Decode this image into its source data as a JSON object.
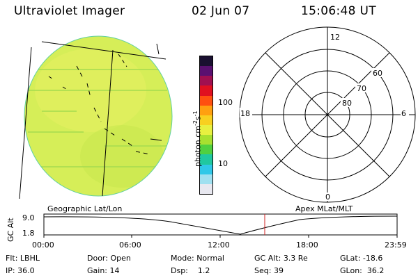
{
  "header": {
    "title": "Ultraviolet Imager",
    "date": "02 Jun 07",
    "time": "15:06:48 UT"
  },
  "colorbar": {
    "unit_label": "photon cm",
    "unit_exp1": "-2",
    "unit_mid": "s",
    "unit_exp2": "-1",
    "tick_100": "100",
    "tick_10": "10",
    "colors": [
      "#1a1030",
      "#5a1070",
      "#a01050",
      "#e01020",
      "#ff5010",
      "#ffa010",
      "#f8d020",
      "#e8f040",
      "#a8e030",
      "#50d040",
      "#20c8a0",
      "#30c8e8",
      "#a0e0f0",
      "#e8e8f0"
    ]
  },
  "polar": {
    "label_top": "12",
    "label_left": "18",
    "label_right": "6",
    "label_bottom": "0",
    "ring_labels": [
      "60",
      "70",
      "80"
    ]
  },
  "timeline": {
    "left_label": "Geographic Lat/Lon",
    "right_label": "Apex MLat/MLT",
    "y_axis_label": "GC Alt",
    "y_top": "9.0",
    "y_bottom": "1.8",
    "x_ticks": [
      "00:00",
      "06:00",
      "12:00",
      "18:00",
      "23:59"
    ],
    "marker_color": "#d02020"
  },
  "info": {
    "filter_label": "Flt:",
    "filter_value": "LBHL",
    "ip_label": "IP:",
    "ip_value": "36.0",
    "door_label": "Door:",
    "door_value": "Open",
    "gain_label": "Gain:",
    "gain_value": "14",
    "mode_label": "Mode:",
    "mode_value": "Normal",
    "dsp_label": "Dsp:",
    "dsp_value": "1.2",
    "gcalt_label": "GC Alt:",
    "gcalt_value": "3.3 Re",
    "seq_label": "Seq:",
    "seq_value": "39",
    "glat_label": "GLat:",
    "glat_value": "-18.6",
    "glon_label": "GLon:",
    "glon_value": "36.2"
  }
}
